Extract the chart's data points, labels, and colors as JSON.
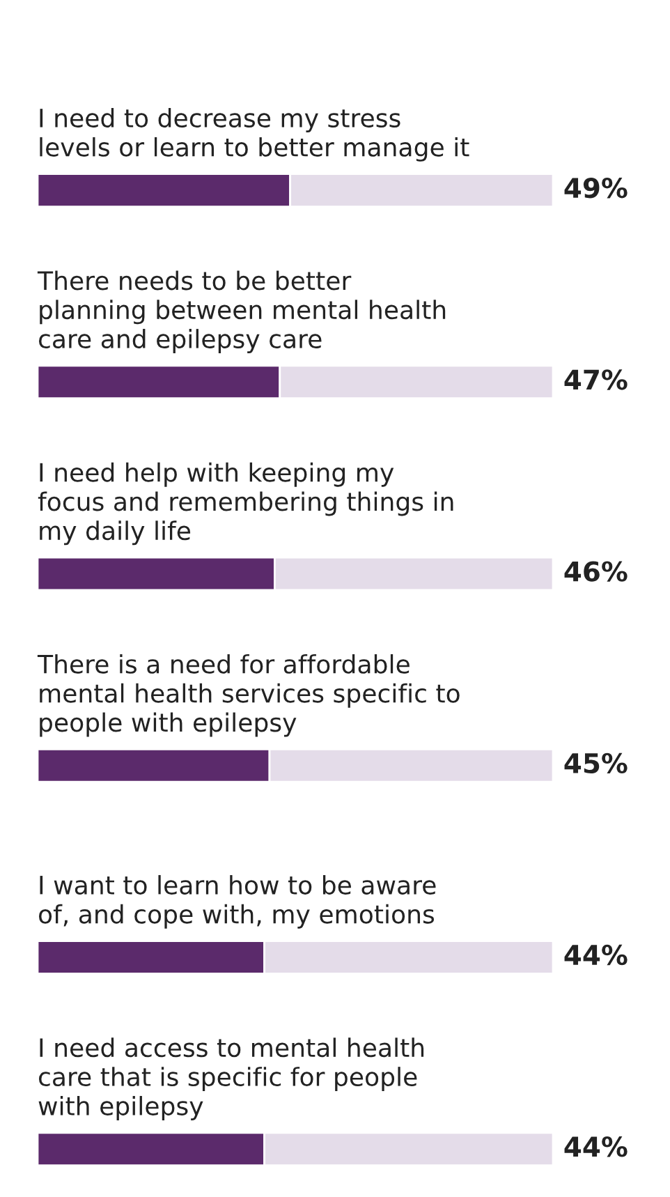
{
  "chart_data": {
    "type": "bar",
    "orientation": "horizontal",
    "stacked": true,
    "categories": [
      "I need to decrease my stress\nlevels or learn to better manage it",
      "There needs to be better\nplanning between mental health\ncare and epilepsy care",
      "I need help with keeping my\nfocus and remembering things in\nmy daily life",
      "There is a need for affordable\nmental health services specific to\npeople with epilepsy",
      "I want to learn how to be aware\nof, and cope with, my emotions",
      "I need access to mental health\ncare that is specific for people\nwith epilepsy"
    ],
    "series": [
      {
        "color": "#5b2a6b",
        "values": [
          49,
          47,
          46,
          45,
          44,
          44
        ],
        "value_labels": [
          "49%",
          "47%",
          "46%",
          "45%",
          "44%",
          "44%"
        ]
      },
      {
        "color": "#e4dce9",
        "values": [
          51,
          53,
          54,
          55,
          56,
          56
        ]
      }
    ]
  }
}
